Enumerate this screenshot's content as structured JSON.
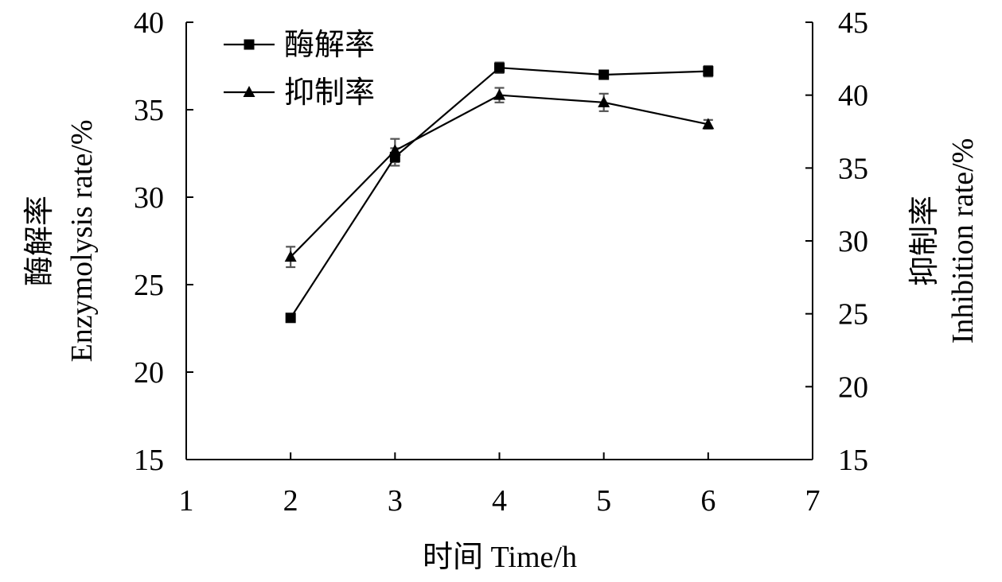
{
  "chart_data": {
    "type": "line",
    "x": [
      2,
      3,
      4,
      5,
      6
    ],
    "xlabel": "时间 Time/h",
    "xlim": [
      1,
      7
    ],
    "xticks": [
      1,
      2,
      3,
      4,
      5,
      6,
      7
    ],
    "left_axis": {
      "label_line1": "酶解率",
      "label_line2": "Enzymolysis rate/%",
      "ylim": [
        15,
        40
      ],
      "ticks": [
        15,
        20,
        25,
        30,
        35,
        40
      ]
    },
    "right_axis": {
      "label_line1": "抑制率",
      "label_line2": "Inhibition rate/%",
      "ylim": [
        15,
        45
      ],
      "ticks": [
        15,
        20,
        25,
        30,
        35,
        40,
        45
      ]
    },
    "series": [
      {
        "name": "酶解率",
        "axis": "left",
        "marker": "square",
        "values": [
          23.1,
          32.3,
          37.4,
          37.0,
          37.2
        ],
        "errors": [
          0.15,
          0.5,
          0.3,
          0.15,
          0.3
        ]
      },
      {
        "name": "抑制率",
        "axis": "right",
        "marker": "triangle",
        "values": [
          28.9,
          36.2,
          40.0,
          39.5,
          38.0
        ],
        "errors": [
          0.7,
          0.8,
          0.5,
          0.6,
          0.3
        ]
      }
    ],
    "legend_position": "top-left",
    "grid": false
  }
}
